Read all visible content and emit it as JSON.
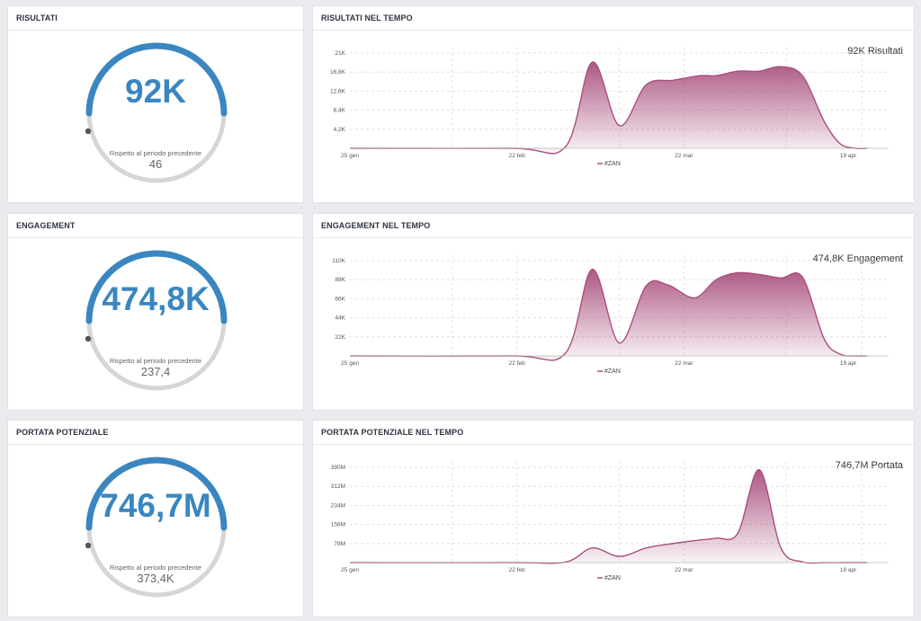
{
  "colors": {
    "accent": "#3a86c0",
    "gauge_track": "#d6d6d6",
    "series": "#a94f7d"
  },
  "panels": [
    {
      "title": "RISULTATI",
      "value": "92K",
      "compare_label": "Rispetto al periodo precedente",
      "previous": "46",
      "chart_title": "RISULTATI NEL TEMPO",
      "chart_total": "92K Risultati"
    },
    {
      "title": "ENGAGEMENT",
      "value": "474,8K",
      "compare_label": "Rispetto al periodo precedente",
      "previous": "237,4",
      "chart_title": "ENGAGEMENT NEL TEMPO",
      "chart_total": "474,8K Engagement"
    },
    {
      "title": "PORTATA POTENZIALE",
      "value": "746,7M",
      "compare_label": "Rispetto al periodo precedente",
      "previous": "373,4K",
      "chart_title": "PORTATA POTENZIALE NEL TEMPO",
      "chart_total": "746,7M Portata"
    }
  ],
  "chart_data": [
    {
      "type": "area",
      "x_ticks": [
        "25 gen",
        "22 feb",
        "22 mar",
        "19 apr"
      ],
      "y_ticks": [
        "4,2K",
        "8,4K",
        "12,6K",
        "16,8K",
        "21K"
      ],
      "ylim": [
        0,
        21000
      ],
      "grid": true,
      "legend": "bottom",
      "series": [
        {
          "name": "#ZAN",
          "x": [
            0,
            30,
            40,
            45,
            50,
            55,
            60,
            65,
            68,
            72,
            76,
            80,
            84,
            88,
            91,
            94,
            96
          ],
          "values": [
            0,
            0,
            300,
            19000,
            5000,
            14000,
            15000,
            16000,
            16000,
            17000,
            17000,
            18000,
            16000,
            6000,
            1000,
            0,
            0
          ]
        }
      ]
    },
    {
      "type": "area",
      "x_ticks": [
        "25 gen",
        "22 feb",
        "22 mar",
        "19 apr"
      ],
      "y_ticks": [
        "22K",
        "44K",
        "66K",
        "88K",
        "110K"
      ],
      "ylim": [
        0,
        110000
      ],
      "grid": true,
      "legend": "bottom",
      "series": [
        {
          "name": "#ZAN",
          "x": [
            0,
            30,
            40,
            45,
            50,
            55,
            59,
            64,
            68,
            72,
            76,
            80,
            84,
            88,
            91,
            94,
            96
          ],
          "values": [
            0,
            0,
            3000,
            100000,
            15000,
            81000,
            82000,
            67000,
            88000,
            96000,
            94000,
            90000,
            91000,
            20000,
            2000,
            0,
            0
          ]
        }
      ]
    },
    {
      "type": "area",
      "x_ticks": [
        "25 gen",
        "22 feb",
        "22 mar",
        "19 apr"
      ],
      "y_ticks": [
        "78M",
        "156M",
        "234M",
        "312M",
        "390M"
      ],
      "ylim": [
        0,
        390000000
      ],
      "grid": true,
      "legend": "bottom",
      "series": [
        {
          "name": "#ZAN",
          "x": [
            0,
            30,
            40,
            45,
            50,
            55,
            59,
            64,
            68,
            72,
            76,
            80,
            84,
            88,
            91,
            94,
            96
          ],
          "values": [
            0,
            0,
            2000000,
            60000000,
            25000000,
            60000000,
            75000000,
            90000000,
            100000000,
            120000000,
            380000000,
            60000000,
            3000000,
            0,
            0,
            0,
            0
          ]
        }
      ]
    }
  ]
}
